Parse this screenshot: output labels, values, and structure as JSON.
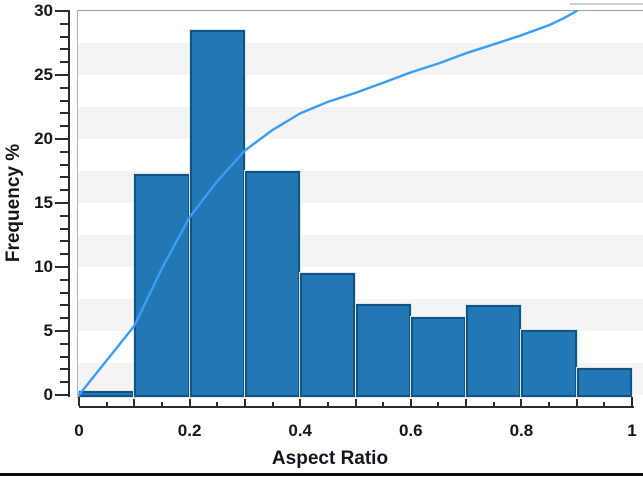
{
  "chart_data": {
    "type": "bar",
    "subtype": "histogram-with-cumulative-line",
    "title": "",
    "xlabel": "Aspect Ratio",
    "ylabel": "Frequency %",
    "xlim": [
      0,
      1
    ],
    "ylim": [
      0,
      30
    ],
    "grid": "horizontal-stripes",
    "legend": "none",
    "x_tick_values": [
      0,
      0.2,
      0.4,
      0.6,
      0.8,
      1
    ],
    "x_tick_labels": [
      "0",
      "0.2",
      "0.4",
      "0.6",
      "0.8",
      "1"
    ],
    "x_major_step": 0.1,
    "x_minor_step": 0.05,
    "y_tick_values": [
      0,
      5,
      10,
      15,
      20,
      25,
      30
    ],
    "y_tick_labels": [
      "0",
      "5",
      "10",
      "15",
      "20",
      "25",
      "30"
    ],
    "y_major_step": 5,
    "y_minor_step": 1,
    "bin_edges": [
      0,
      0.1,
      0.2,
      0.3,
      0.4,
      0.5,
      0.6,
      0.7,
      0.8,
      0.9,
      1.0
    ],
    "series": [
      {
        "name": "frequency-histogram",
        "type": "bar",
        "values": [
          0.3,
          17.3,
          28.5,
          17.5,
          9.5,
          7.1,
          6.1,
          7.0,
          5.1,
          2.1
        ]
      },
      {
        "name": "cumulative-frequency-line",
        "type": "line",
        "x": [
          0,
          0.05,
          0.1,
          0.15,
          0.2,
          0.25,
          0.3,
          0.35,
          0.4,
          0.45,
          0.5,
          0.55,
          0.6,
          0.65,
          0.7,
          0.75,
          0.8,
          0.85,
          0.875,
          0.9
        ],
        "y": [
          0,
          2.7,
          5.4,
          9.9,
          13.9,
          16.7,
          19.1,
          20.7,
          22.0,
          22.9,
          23.6,
          24.4,
          25.2,
          25.9,
          26.7,
          27.4,
          28.1,
          28.9,
          29.4,
          30.0
        ]
      }
    ]
  },
  "colors": {
    "bar_fill": "#2277b5",
    "bar_border": "#14527f",
    "bar_halo": "#d9e7f3",
    "cumulative_line": "#3b9df5",
    "stripe_gray": "#f4f4f4",
    "stripe_white": "#ffffff",
    "axis": "#2b2b2b",
    "plot_border_top": "#9f9f9f",
    "plot_border_left": "#b3b3b3",
    "bottom_edge": "#0a0a0a"
  }
}
